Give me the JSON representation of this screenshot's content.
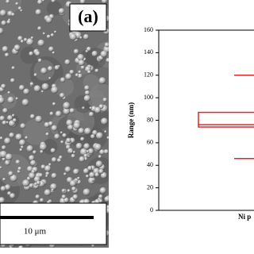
{
  "image": {
    "panel_label": "(a)",
    "scale_bar": "10 μm"
  },
  "chart_data": {
    "type": "box",
    "ylabel": "Range (nm)",
    "categories": [
      "Ni p"
    ],
    "series": [
      {
        "color": "#e0262b",
        "whislo": [
          46
        ],
        "q1": [
          74
        ],
        "med": [
          76
        ],
        "q3": [
          87
        ],
        "whishi": [
          120
        ]
      }
    ],
    "ylim": [
      0,
      160
    ],
    "yticks": [
      0,
      20,
      40,
      60,
      80,
      100,
      120,
      140,
      160
    ]
  }
}
